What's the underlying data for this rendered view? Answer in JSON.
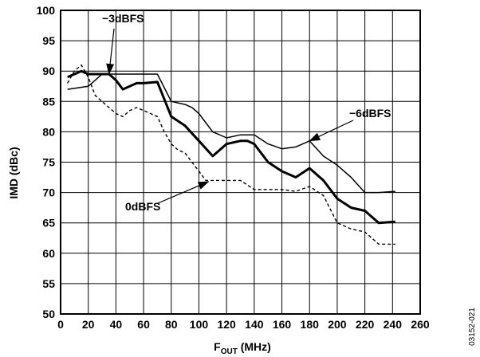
{
  "chart_data": {
    "type": "line",
    "xlabel": "F",
    "xlabel_sub": "OUT",
    "xlabel_unit": " (MHz)",
    "ylabel": "IMD (dBc)",
    "xlim": [
      0,
      260
    ],
    "ylim": [
      50,
      100
    ],
    "xticks": [
      0,
      20,
      40,
      60,
      80,
      100,
      120,
      140,
      160,
      180,
      200,
      220,
      240,
      260
    ],
    "yticks": [
      50,
      55,
      60,
      65,
      70,
      75,
      80,
      85,
      90,
      95,
      100
    ],
    "grid": true,
    "figure_id": "03152-021",
    "series": [
      {
        "name": "0dBFS",
        "style": "dashed",
        "x": [
          5,
          10,
          15,
          20,
          25,
          30,
          35,
          40,
          45,
          50,
          55,
          60,
          65,
          70,
          75,
          80,
          85,
          90,
          95,
          100,
          105,
          110,
          120,
          130,
          140,
          150,
          160,
          170,
          180,
          190,
          200,
          210,
          220,
          230,
          242
        ],
        "y": [
          88,
          90,
          91,
          89,
          86,
          85,
          84,
          83,
          82.5,
          83.5,
          84,
          83.5,
          83,
          82.5,
          80,
          78,
          77,
          76.5,
          75,
          73.5,
          72,
          72,
          72,
          72,
          70.5,
          70.5,
          70.5,
          70.2,
          71,
          69.5,
          65,
          64,
          63.5,
          61.5,
          61.5
        ]
      },
      {
        "name": "-3dBFS",
        "style": "solid-thick",
        "x": [
          5,
          15,
          20,
          30,
          35,
          40,
          45,
          50,
          55,
          60,
          70,
          80,
          90,
          100,
          110,
          120,
          130,
          135,
          140,
          150,
          160,
          170,
          180,
          190,
          200,
          210,
          220,
          230,
          242
        ],
        "y": [
          89,
          90,
          89.5,
          89.5,
          89.5,
          88.5,
          87,
          87.5,
          88,
          88,
          88.2,
          82.5,
          81,
          78.5,
          76,
          78,
          78.5,
          78.5,
          78,
          75,
          73.5,
          72.5,
          74,
          72,
          69,
          67.5,
          67,
          65,
          65.2
        ]
      },
      {
        "name": "-6dBFS",
        "style": "solid-thin",
        "x": [
          5,
          20,
          30,
          40,
          50,
          60,
          70,
          80,
          90,
          95,
          100,
          105,
          110,
          120,
          130,
          140,
          150,
          160,
          170,
          180,
          190,
          200,
          210,
          220,
          230,
          242
        ],
        "y": [
          87,
          87.5,
          89.5,
          89.5,
          89.5,
          89.5,
          89.5,
          85,
          84.5,
          84,
          83,
          81.5,
          80,
          79,
          79.5,
          79.5,
          78,
          77.2,
          77.5,
          78.5,
          76,
          74.5,
          72.5,
          70,
          70,
          70.2
        ]
      }
    ],
    "annotations": [
      {
        "label": "−3dBFS",
        "series": "-3dBFS",
        "arrow_to": [
          35,
          89.5
        ]
      },
      {
        "label": "−6dBFS",
        "series": "-6dBFS",
        "arrow_to": [
          180,
          78.5
        ]
      },
      {
        "label": "0dBFS",
        "series": "0dBFS",
        "arrow_to": [
          107,
          71.8
        ]
      }
    ]
  }
}
